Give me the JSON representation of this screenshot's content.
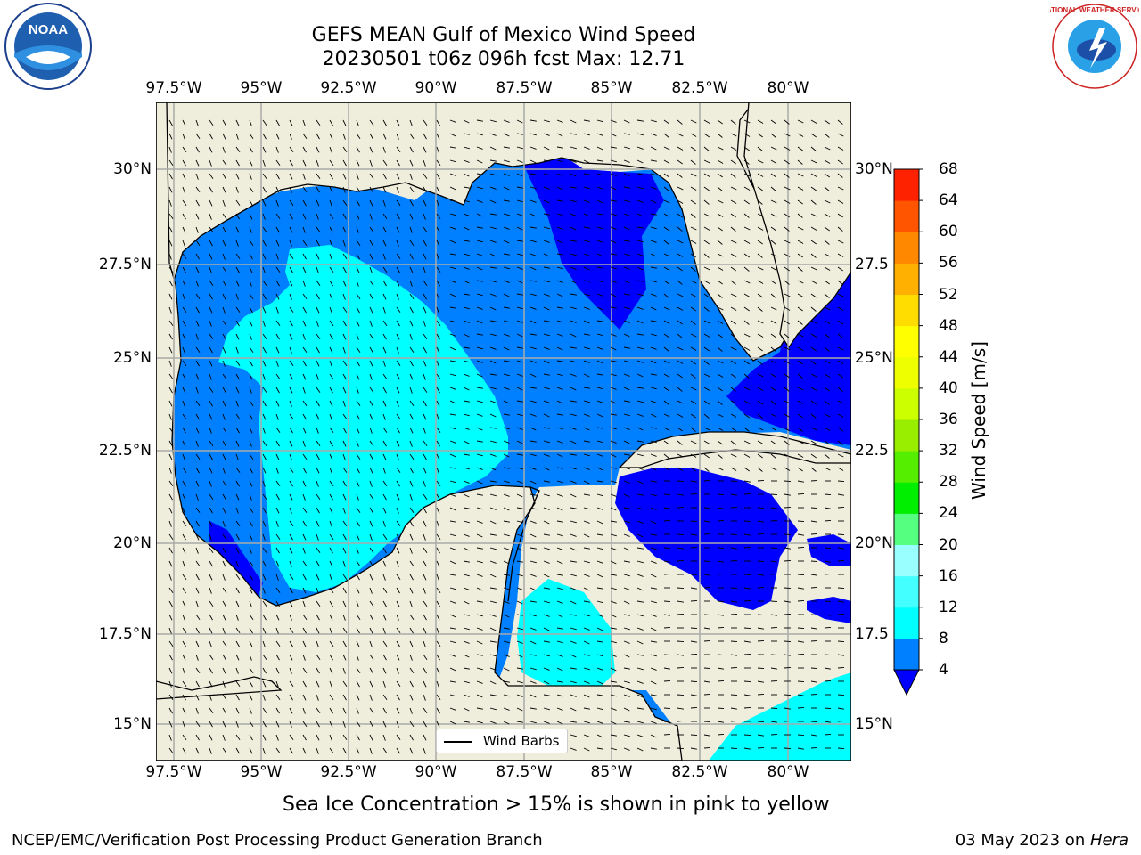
{
  "title": {
    "line1": "GEFS MEAN Gulf of Mexico Wind Speed",
    "line2": "20230501 t06z 096h fcst   Max: 12.71"
  },
  "axes": {
    "lon_ticks": [
      "97.5°W",
      "95°W",
      "92.5°W",
      "90°W",
      "87.5°W",
      "85°W",
      "82.5°W",
      "80°W"
    ],
    "lat_ticks": [
      "30°N",
      "27.5°N",
      "25°N",
      "22.5°N",
      "20°N",
      "17.5°N",
      "15°N"
    ],
    "lat_ticks_right": [
      "30°N",
      "27.5",
      "25°N",
      "22.5",
      "20°N",
      "17.5",
      "15°N"
    ]
  },
  "colorbar": {
    "title": "Wind Speed [m/s]",
    "levels": [
      "4",
      "8",
      "12",
      "16",
      "20",
      "24",
      "28",
      "32",
      "36",
      "40",
      "44",
      "48",
      "52",
      "56",
      "60",
      "64",
      "68"
    ],
    "colors": [
      "#0080ff",
      "#00ffff",
      "#44ffff",
      "#99ffff",
      "#55ff80",
      "#00ee00",
      "#55ee00",
      "#99ee00",
      "#ccff00",
      "#eeff00",
      "#ffff00",
      "#ffdd00",
      "#ffb000",
      "#ff8800",
      "#ff5500",
      "#ff2200"
    ],
    "under_color": "#0000ff"
  },
  "legend": {
    "label": "Wind Barbs"
  },
  "note": "Sea Ice Concentration > 15% is shown in pink to yellow",
  "footer": {
    "left": "NCEP/EMC/Verification Post Processing Product Generation Branch",
    "date": "03 May 2023 on ",
    "machine": "Hera"
  },
  "logos": {
    "noaa": "NOAA",
    "nws": "NATIONAL WEATHER SERVICE"
  },
  "map_colors": {
    "land": "#efeedd",
    "grid": "#aaaaaa",
    "low": "#0000ff",
    "mid": "#0080ff",
    "high": "#00ffff"
  }
}
